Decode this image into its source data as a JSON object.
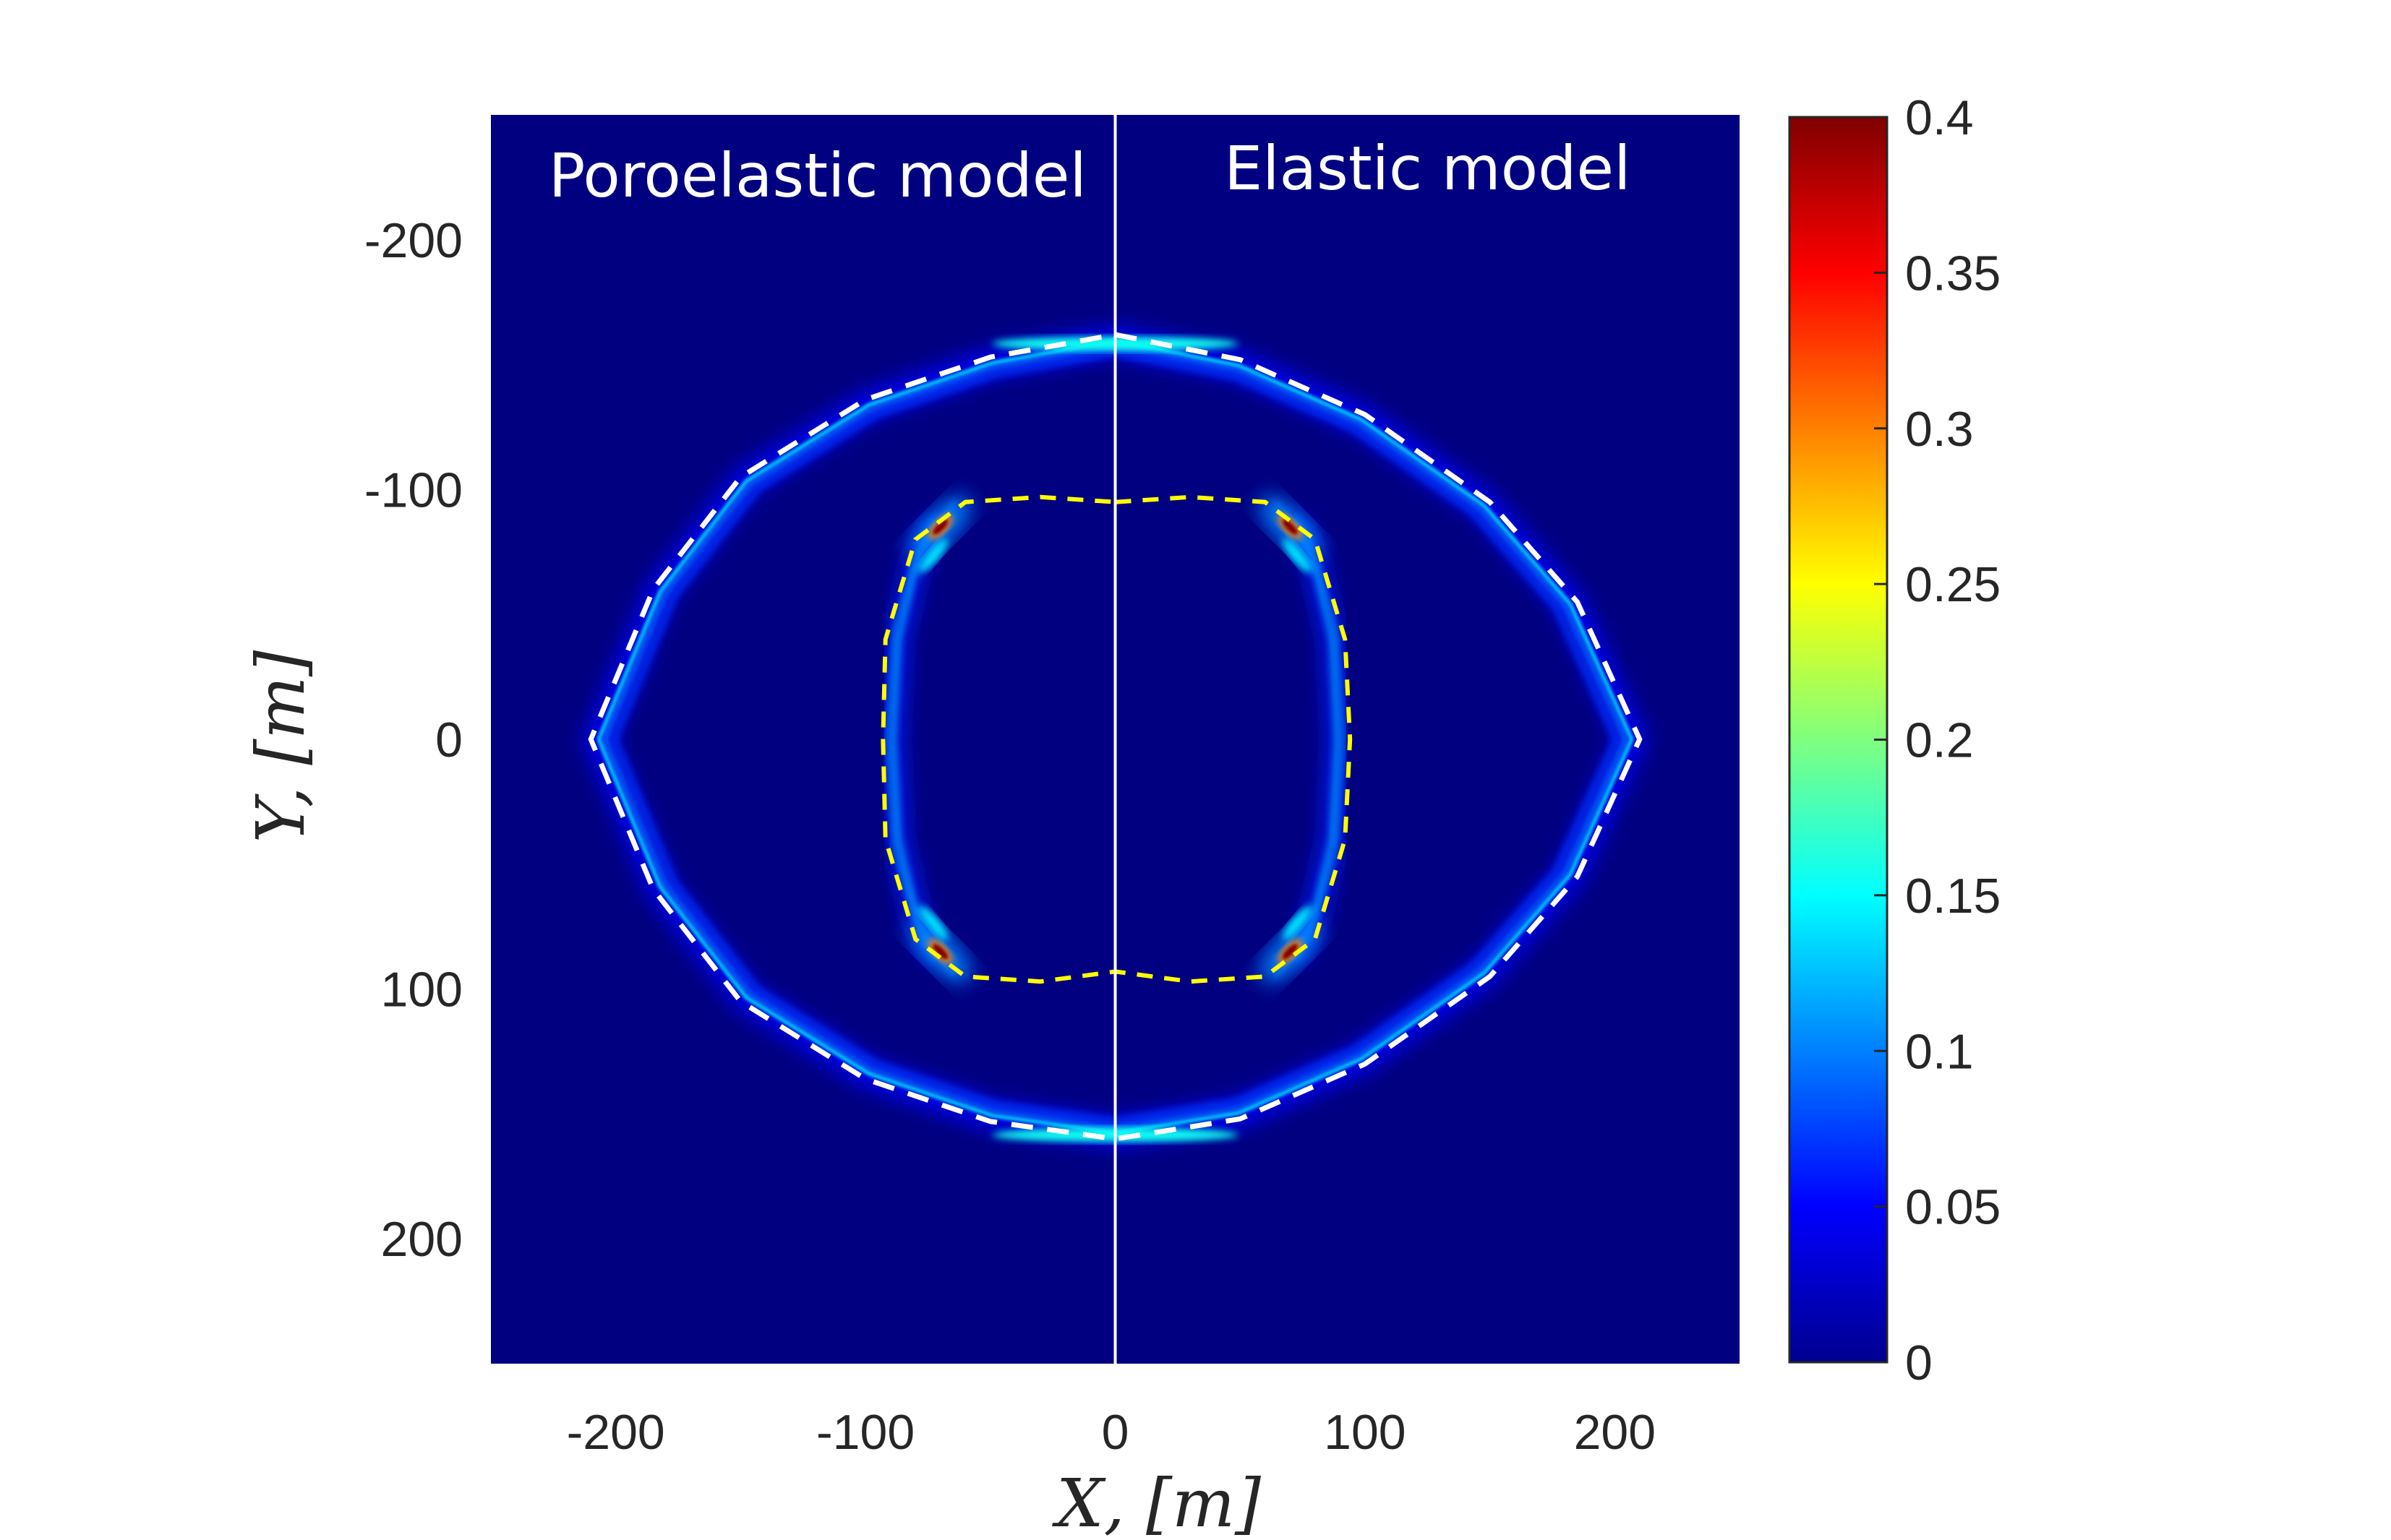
{
  "chart_data": {
    "type": "heatmap",
    "title": "",
    "xlabel": "X,  [m]",
    "ylabel": "Y,  [m]",
    "xlim": [
      -250,
      250
    ],
    "ylim": [
      250,
      -250
    ],
    "y_axis_reversed": true,
    "x_ticks": [
      -200,
      -100,
      0,
      100,
      200
    ],
    "x_tick_labels": [
      "-200",
      "-100",
      "0",
      "100",
      "200"
    ],
    "y_ticks": [
      -200,
      -100,
      0,
      100,
      200
    ],
    "y_tick_labels": [
      "-200",
      "-100",
      "0",
      "100",
      "200"
    ],
    "grid": false,
    "colormap": "jet",
    "colorbar": {
      "range": [
        0,
        0.4
      ],
      "ticks": [
        0,
        0.05,
        0.1,
        0.15,
        0.2,
        0.25,
        0.3,
        0.35,
        0.4
      ],
      "tick_labels": [
        "0",
        "0.05",
        "0.1",
        "0.15",
        "0.2",
        "0.25",
        "0.3",
        "0.35",
        "0.4"
      ],
      "placement": "right"
    },
    "divider_x": 0,
    "divider_color": "#ffffff",
    "panels": [
      {
        "label": "Poroelastic model",
        "side": "left"
      },
      {
        "label": "Elastic model",
        "side": "right"
      }
    ],
    "background_value": 0,
    "outer_front": {
      "description": "fast wavefront ring",
      "peak_value": 0.12,
      "left_x_extent": -205,
      "right_x_extent": 213,
      "top_y": -160,
      "bottom_y": 160,
      "reference_curve": {
        "style": "dashed",
        "color": "#ffffff",
        "points": [
          [
            0,
            -162
          ],
          [
            50,
            -152
          ],
          [
            100,
            -130
          ],
          [
            150,
            -95
          ],
          [
            185,
            -55
          ],
          [
            210,
            0
          ],
          [
            185,
            55
          ],
          [
            150,
            95
          ],
          [
            100,
            130
          ],
          [
            50,
            152
          ],
          [
            0,
            160
          ],
          [
            -50,
            153
          ],
          [
            -100,
            136
          ],
          [
            -150,
            105
          ],
          [
            -185,
            60
          ],
          [
            -210,
            0
          ],
          [
            -185,
            -60
          ],
          [
            -150,
            -105
          ],
          [
            -100,
            -136
          ],
          [
            -50,
            -153
          ],
          [
            0,
            -162
          ]
        ]
      }
    },
    "inner_front": {
      "description": "slow wavefront with cusps",
      "peak_value": 0.4,
      "left_x_extent": -92,
      "right_x_extent": 95,
      "top_y": -97,
      "bottom_y": 95,
      "cusp_points": [
        [
          -70,
          -85
        ],
        [
          70,
          -85
        ],
        [
          -70,
          85
        ],
        [
          70,
          85
        ]
      ],
      "reference_curve": {
        "style": "dashed",
        "color": "#ffff00",
        "points": [
          [
            0,
            -95
          ],
          [
            30,
            -97
          ],
          [
            60,
            -95
          ],
          [
            80,
            -80
          ],
          [
            92,
            -40
          ],
          [
            94,
            0
          ],
          [
            92,
            40
          ],
          [
            80,
            80
          ],
          [
            60,
            95
          ],
          [
            30,
            97
          ],
          [
            0,
            93
          ],
          [
            -30,
            97
          ],
          [
            -60,
            95
          ],
          [
            -80,
            80
          ],
          [
            -92,
            40
          ],
          [
            -93,
            0
          ],
          [
            -92,
            -40
          ],
          [
            -80,
            -80
          ],
          [
            -60,
            -95
          ],
          [
            -30,
            -97
          ],
          [
            0,
            -95
          ]
        ]
      }
    }
  }
}
